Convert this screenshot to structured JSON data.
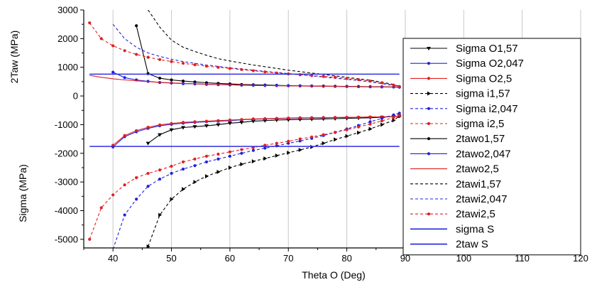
{
  "chart_data": {
    "type": "line",
    "title": "",
    "xlabel": "Theta O  (Deg)",
    "ylabel_top": "2Taw (MPa)",
    "ylabel_bottom": "Sigma (MPa)",
    "xlim": [
      35,
      120
    ],
    "ylim": [
      -5300,
      3000
    ],
    "x_ticks": [
      40,
      50,
      60,
      70,
      80,
      90,
      100,
      110,
      120
    ],
    "y_ticks": [
      3000,
      2000,
      1000,
      0,
      -1000,
      -2000,
      -3000,
      -4000,
      -5000
    ],
    "grid": "vertical",
    "legend_position": "right",
    "series": [
      {
        "name": "Sigma O1,57",
        "color": "#000000",
        "dash": "solid",
        "marker": "tri-down",
        "x": [
          46,
          48,
          50,
          52,
          54,
          56,
          58,
          60,
          62,
          64,
          66,
          68,
          70,
          72,
          74,
          76,
          78,
          80,
          82,
          84,
          86,
          88,
          89
        ],
        "y": [
          -1650,
          -1350,
          -1180,
          -1100,
          -1070,
          -1040,
          -1000,
          -950,
          -920,
          -880,
          -860,
          -840,
          -830,
          -820,
          -810,
          -800,
          -790,
          -780,
          -770,
          -760,
          -740,
          -720,
          -700
        ]
      },
      {
        "name": "Sigma O2,047",
        "color": "#2020e0",
        "dash": "solid",
        "marker": "dot",
        "x": [
          40,
          42,
          44,
          46,
          48,
          50,
          52,
          54,
          56,
          58,
          60,
          62,
          64,
          66,
          68,
          70,
          72,
          74,
          76,
          78,
          80,
          82,
          84,
          86,
          88,
          89
        ],
        "y": [
          -1780,
          -1420,
          -1250,
          -1130,
          -1040,
          -990,
          -950,
          -920,
          -900,
          -880,
          -860,
          -830,
          -810,
          -800,
          -790,
          -780,
          -770,
          -760,
          -760,
          -750,
          -750,
          -740,
          -740,
          -730,
          -720,
          -710
        ]
      },
      {
        "name": "Sigma O2,5",
        "color": "#e02020",
        "dash": "solid",
        "marker": "dot",
        "x": [
          40,
          42,
          44,
          46,
          48,
          50,
          52,
          54,
          56,
          58,
          60,
          62,
          64,
          66,
          68,
          70,
          72,
          74,
          76,
          78,
          80,
          82,
          84,
          86,
          88,
          89
        ],
        "y": [
          -1720,
          -1380,
          -1210,
          -1090,
          -1010,
          -960,
          -920,
          -900,
          -880,
          -860,
          -840,
          -820,
          -800,
          -790,
          -780,
          -770,
          -760,
          -760,
          -750,
          -750,
          -740,
          -740,
          -730,
          -730,
          -720,
          -700
        ]
      },
      {
        "name": "sigma i1,57",
        "color": "#000000",
        "dash": "dashed",
        "marker": "tri-right",
        "x": [
          46,
          48,
          50,
          52,
          54,
          56,
          58,
          60,
          62,
          64,
          66,
          68,
          70,
          72,
          74,
          76,
          78,
          80,
          82,
          84,
          86,
          88,
          89
        ],
        "y": [
          -5250,
          -4150,
          -3600,
          -3250,
          -3000,
          -2800,
          -2650,
          -2500,
          -2380,
          -2280,
          -2180,
          -2080,
          -1980,
          -1880,
          -1780,
          -1650,
          -1520,
          -1400,
          -1280,
          -1150,
          -1000,
          -850,
          -700
        ]
      },
      {
        "name": "Sigma i2,047",
        "color": "#2020e0",
        "dash": "dashed",
        "marker": "dot",
        "x": [
          40,
          42,
          44,
          46,
          48,
          50,
          52,
          54,
          56,
          58,
          60,
          62,
          64,
          66,
          68,
          70,
          72,
          74,
          76,
          78,
          80,
          82,
          84,
          86,
          88,
          89
        ],
        "y": [
          -5350,
          -4150,
          -3600,
          -3150,
          -2900,
          -2700,
          -2550,
          -2430,
          -2300,
          -2200,
          -2100,
          -2000,
          -1900,
          -1820,
          -1740,
          -1650,
          -1570,
          -1480,
          -1380,
          -1270,
          -1150,
          -1030,
          -900,
          -780,
          -660,
          -600
        ]
      },
      {
        "name": "sigma i2,5",
        "color": "#e02020",
        "dash": "dashed",
        "marker": "dot",
        "x": [
          36,
          38,
          40,
          42,
          44,
          46,
          48,
          50,
          52,
          54,
          56,
          58,
          60,
          62,
          64,
          66,
          68,
          70,
          72,
          74,
          76,
          78,
          80,
          82,
          84,
          86,
          88,
          89
        ],
        "y": [
          -5000,
          -3900,
          -3450,
          -3100,
          -2850,
          -2700,
          -2580,
          -2450,
          -2300,
          -2200,
          -2100,
          -2030,
          -1950,
          -1870,
          -1800,
          -1720,
          -1650,
          -1580,
          -1500,
          -1430,
          -1350,
          -1270,
          -1180,
          -1080,
          -980,
          -870,
          -750,
          -680
        ]
      },
      {
        "name": "2tawo1,57",
        "color": "#000000",
        "dash": "solid",
        "marker": "dot",
        "x": [
          44,
          46,
          48,
          50,
          52,
          54,
          56,
          58,
          60,
          62,
          64,
          66,
          68,
          70,
          72,
          74,
          76,
          78,
          80,
          82,
          84,
          86,
          88,
          89
        ],
        "y": [
          2450,
          780,
          620,
          560,
          520,
          490,
          460,
          440,
          420,
          400,
          390,
          380,
          370,
          360,
          355,
          350,
          345,
          340,
          335,
          330,
          325,
          320,
          315,
          310
        ]
      },
      {
        "name": "2tawo2,047",
        "color": "#2020e0",
        "dash": "solid",
        "marker": "dot",
        "x": [
          40,
          42,
          44,
          46,
          48,
          50,
          52,
          54,
          56,
          58,
          60,
          62,
          64,
          66,
          68,
          70,
          72,
          74,
          76,
          78,
          80,
          82,
          84,
          86,
          88,
          89
        ],
        "y": [
          830,
          640,
          560,
          510,
          470,
          450,
          430,
          420,
          405,
          395,
          385,
          375,
          370,
          365,
          360,
          355,
          350,
          345,
          340,
          335,
          330,
          325,
          320,
          315,
          310,
          305
        ]
      },
      {
        "name": "2tawo2,5",
        "color": "#e02020",
        "dash": "solid",
        "marker": "none",
        "x": [
          36,
          38,
          40,
          42,
          44,
          46,
          48,
          50,
          52,
          54,
          56,
          58,
          60,
          62,
          64,
          66,
          68,
          70,
          72,
          74,
          76,
          78,
          80,
          82,
          84,
          86,
          88,
          89
        ],
        "y": [
          720,
          650,
          600,
          560,
          530,
          500,
          475,
          455,
          440,
          425,
          410,
          400,
          390,
          380,
          370,
          365,
          360,
          355,
          350,
          345,
          340,
          335,
          330,
          325,
          320,
          315,
          310,
          305
        ]
      },
      {
        "name": "2tawi1,57",
        "color": "#000000",
        "dash": "dashed",
        "marker": "none",
        "x": [
          46,
          48,
          50,
          52,
          54,
          56,
          58,
          60,
          62,
          64,
          66,
          68,
          70,
          72,
          74,
          76,
          78,
          80,
          82,
          84,
          86,
          88,
          89
        ],
        "y": [
          3000,
          2400,
          1950,
          1700,
          1550,
          1420,
          1300,
          1220,
          1150,
          1080,
          1020,
          960,
          900,
          850,
          800,
          750,
          700,
          650,
          600,
          550,
          480,
          400,
          330
        ]
      },
      {
        "name": "2tawi2,047",
        "color": "#2020e0",
        "dash": "dashed",
        "marker": "none",
        "x": [
          40,
          42,
          44,
          46,
          48,
          50,
          52,
          54,
          56,
          58,
          60,
          62,
          64,
          66,
          68,
          70,
          72,
          74,
          76,
          78,
          80,
          82,
          84,
          86,
          88,
          89
        ],
        "y": [
          2500,
          2000,
          1700,
          1500,
          1380,
          1280,
          1200,
          1140,
          1080,
          1030,
          980,
          940,
          900,
          860,
          820,
          780,
          740,
          700,
          660,
          620,
          580,
          540,
          490,
          430,
          360,
          320
        ]
      },
      {
        "name": "2tawi2,5",
        "color": "#e02020",
        "dash": "dashed",
        "marker": "dot",
        "x": [
          36,
          38,
          40,
          42,
          44,
          46,
          48,
          50,
          52,
          54,
          56,
          58,
          60,
          62,
          64,
          66,
          68,
          70,
          72,
          74,
          76,
          78,
          80,
          82,
          84,
          86,
          88,
          89
        ],
        "y": [
          2550,
          2000,
          1750,
          1580,
          1450,
          1350,
          1270,
          1200,
          1140,
          1090,
          1040,
          1000,
          960,
          920,
          880,
          840,
          800,
          770,
          740,
          710,
          680,
          650,
          610,
          570,
          520,
          460,
          380,
          330
        ]
      },
      {
        "name": "sigma S",
        "color": "#3030e0",
        "dash": "solid",
        "marker": "none",
        "x": [
          36,
          89
        ],
        "y": [
          -1760,
          -1760
        ]
      },
      {
        "name": "2taw S",
        "color": "#3030e0",
        "dash": "solid",
        "marker": "none",
        "x": [
          36,
          89
        ],
        "y": [
          760,
          760
        ]
      }
    ]
  }
}
